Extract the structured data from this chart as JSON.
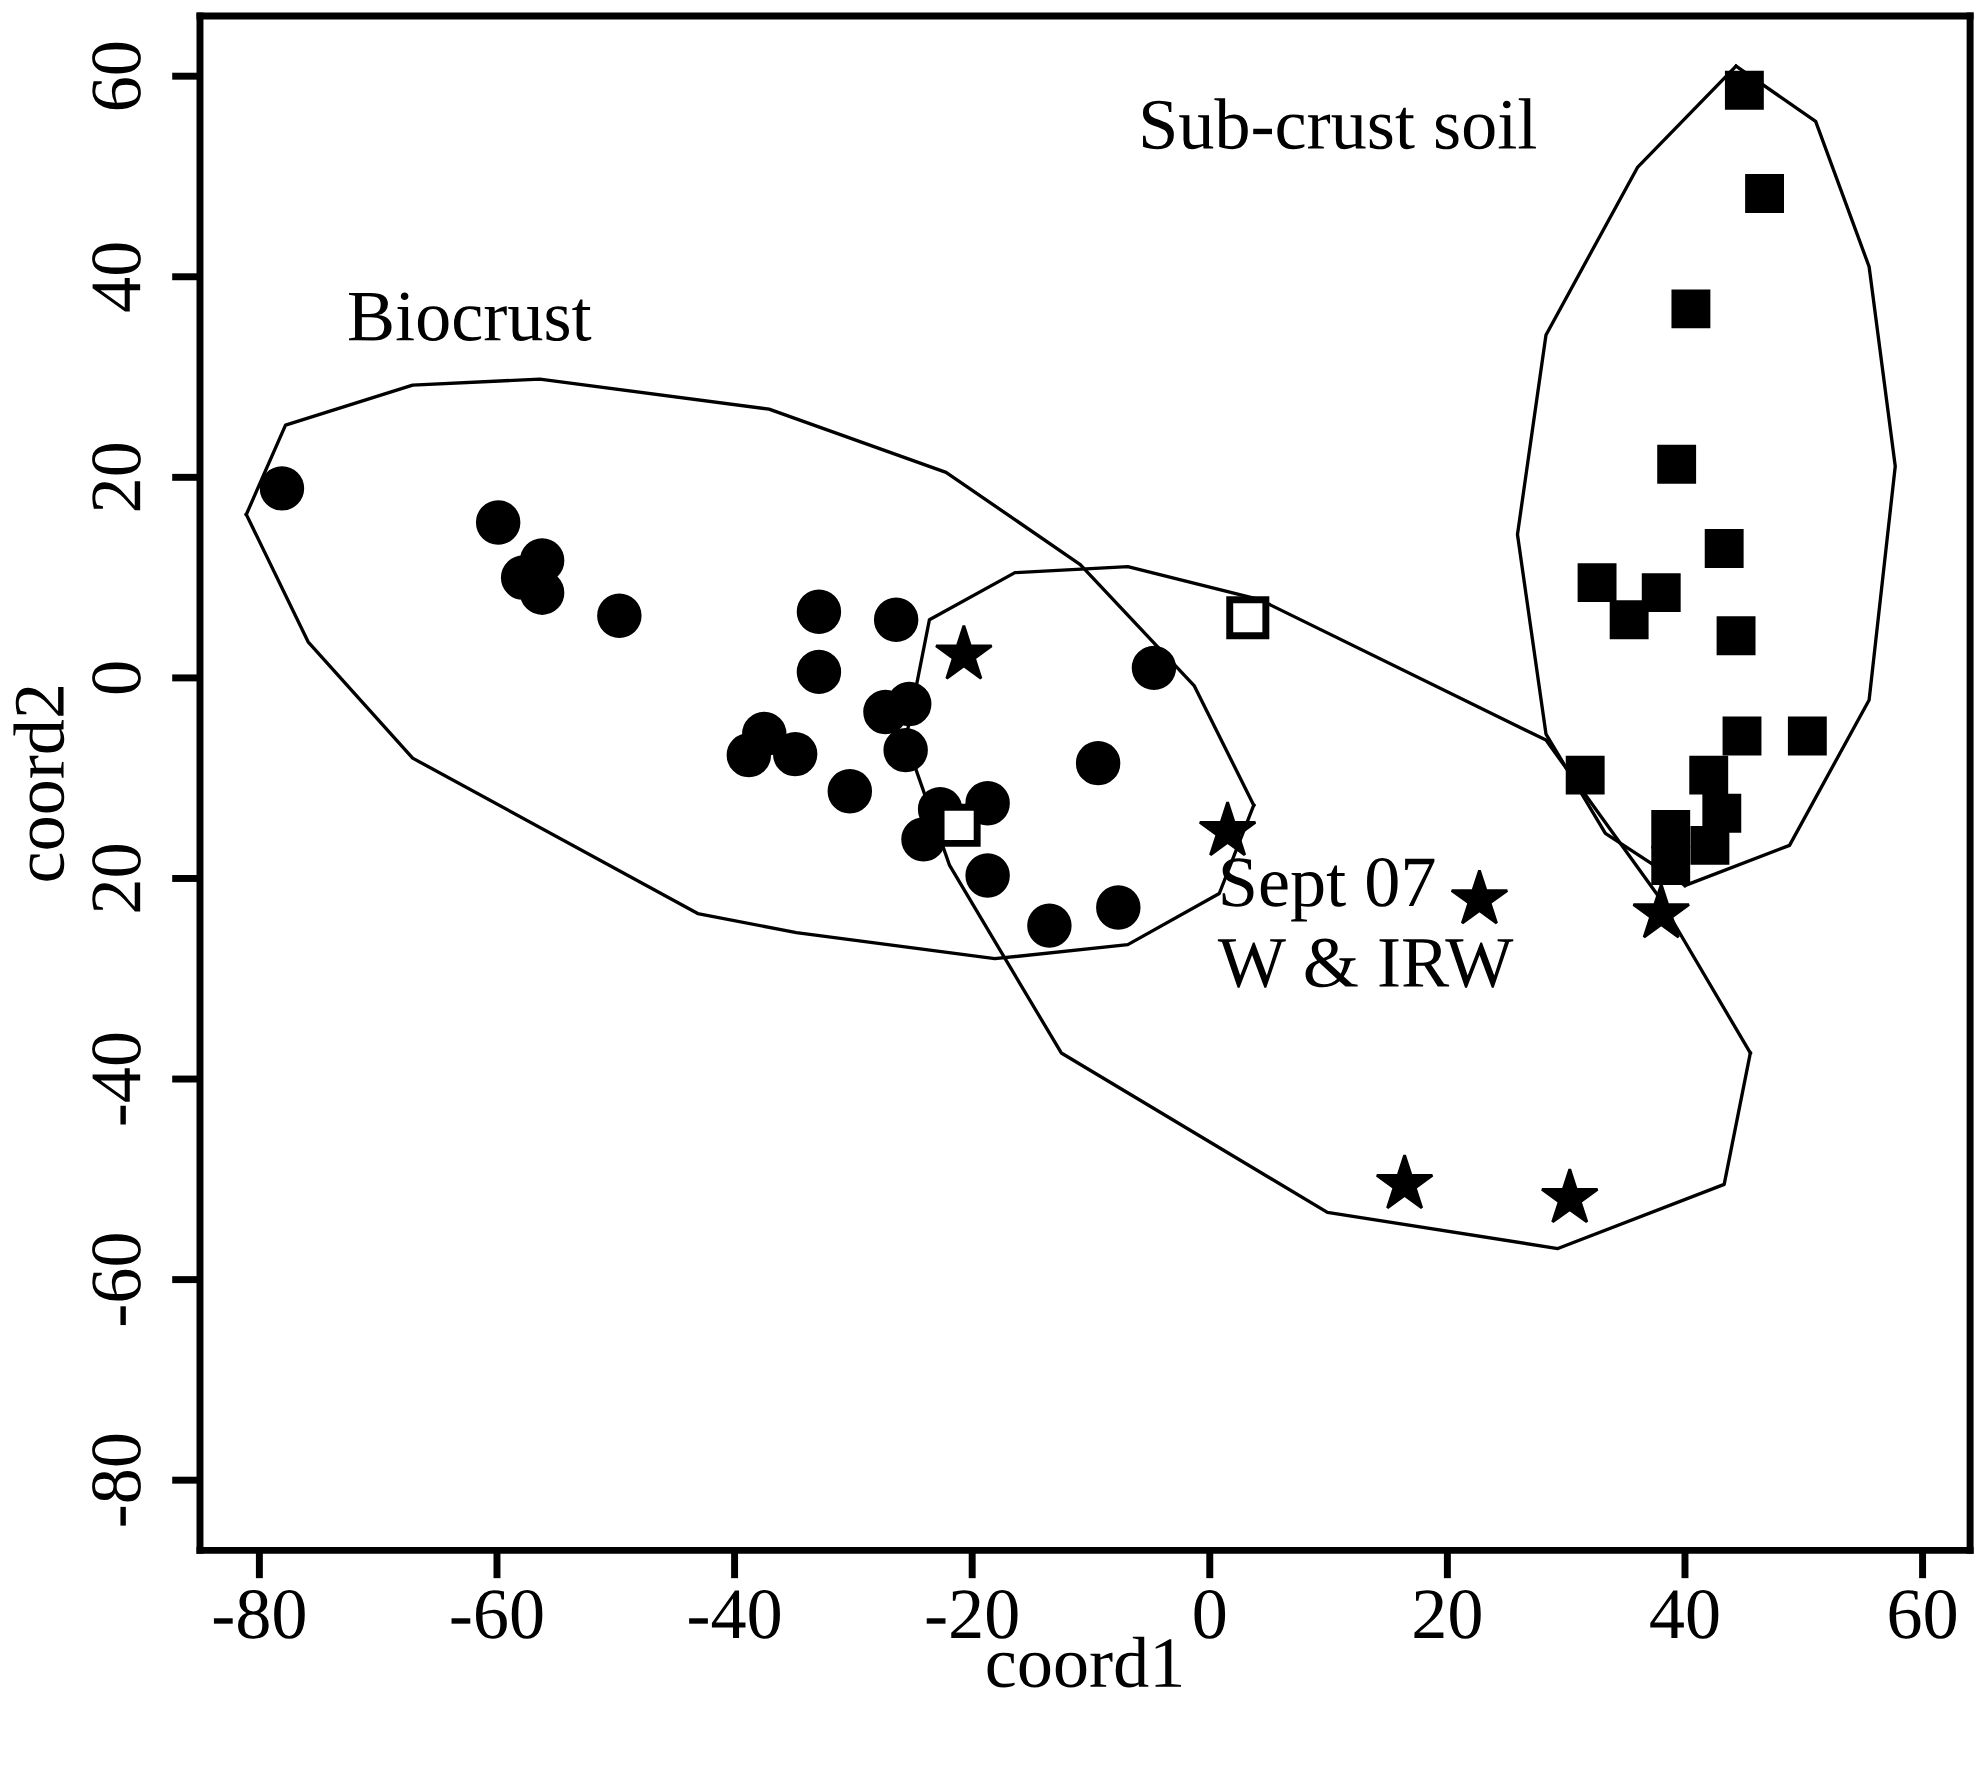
{
  "chart_data": {
    "type": "scatter",
    "xlabel": "coord1",
    "ylabel": "coord2",
    "xlim": [
      -85,
      64
    ],
    "ylim": [
      -87,
      66
    ],
    "xticks": [
      -80,
      -60,
      -40,
      -20,
      0,
      20,
      40,
      60
    ],
    "yticks": [
      -80,
      -60,
      -40,
      {
        "value": -20,
        "label": "20"
      },
      0,
      20,
      40,
      60
    ],
    "grid": false,
    "legend": false,
    "series": [
      {
        "marker": "circle",
        "color": "#000000",
        "x": [
          -78.1,
          -59.9,
          -56.2,
          -57.8,
          -56.2,
          -49.7,
          -32.9,
          -26.4,
          -32.9,
          -25.3,
          -27.3,
          -25.6,
          -37.5,
          -38.8,
          -34.9,
          -30.3,
          -4.7,
          -9.4,
          -22.7,
          -18.7,
          -24.1,
          -18.7,
          -13.5,
          -7.7
        ],
        "values": [
          18.9,
          15.5,
          11.7,
          10.0,
          8.5,
          6.2,
          6.6,
          5.8,
          0.6,
          -2.6,
          -3.4,
          -7.2,
          -5.6,
          -7.7,
          -7.6,
          -11.3,
          1.0,
          -8.5,
          -13.1,
          -12.5,
          -16.1,
          -19.7,
          -24.7,
          -22.9
        ]
      },
      {
        "marker": "star",
        "color": "#000000",
        "x": [
          -20.7,
          1.5,
          22.7,
          38.0,
          16.4,
          30.3
        ],
        "values": [
          2.3,
          -15.3,
          -22.1,
          -23.5,
          -50.5,
          -51.9
        ]
      },
      {
        "marker": "square",
        "color": "#000000",
        "x": [
          3.2,
          -21.1
        ],
        "values": [
          6.0,
          -14.7
        ]
      },
      {
        "marker": "square",
        "color": "#000000",
        "x": [
          45.0,
          46.7,
          40.5,
          39.3,
          43.3,
          32.6,
          38.0,
          35.3,
          44.3,
          44.8,
          50.3,
          31.6,
          42.0,
          43.1,
          38.8,
          42.1,
          38.8
        ],
        "values": [
          58.6,
          48.3,
          36.8,
          21.3,
          12.9,
          9.5,
          8.5,
          5.8,
          4.2,
          -5.8,
          -5.8,
          -9.7,
          -9.7,
          -13.5,
          -15.1,
          -16.7,
          -18.7
        ]
      },
      {
        "type": "line",
        "color": "#000000",
        "x": [
          -81.1,
          -77.8,
          -67.1,
          -56.4,
          -37.1,
          -22.2,
          -10.9,
          -1.3,
          3.7
        ],
        "values": [
          16.3,
          25.2,
          29.2,
          29.8,
          26.8,
          20.5,
          11.3,
          -0.8,
          -12.7
        ]
      },
      {
        "type": "line",
        "color": "#000000",
        "x": [
          -81.1,
          -75.9,
          -67.1,
          -43.1,
          -34.8,
          -18.1,
          -6.9,
          0.8,
          3.7
        ],
        "values": [
          16.3,
          3.6,
          -8.0,
          -23.5,
          -25.4,
          -28.0,
          -26.6,
          -21.5,
          -12.7
        ]
      },
      {
        "type": "line",
        "color": "#000000",
        "x": [
          -25.6,
          -23.6,
          -16.4,
          -6.9,
          4.2,
          28.3,
          37.6,
          45.5
        ],
        "values": [
          -6.2,
          5.8,
          10.5,
          11.1,
          7.8,
          -6.2,
          -21.5,
          -37.4
        ]
      },
      {
        "type": "line",
        "color": "#000000",
        "x": [
          -25.6,
          -21.9,
          -12.5,
          9.9,
          29.3,
          43.3,
          45.5
        ],
        "values": [
          -6.2,
          -18.7,
          -37.4,
          -53.3,
          -56.9,
          -50.5,
          -37.4
        ]
      },
      {
        "type": "line",
        "color": "#000000",
        "x": [
          44.3,
          36.0,
          28.3,
          25.9,
          28.3,
          33.3,
          40.0
        ],
        "values": [
          61.0,
          50.9,
          34.2,
          14.3,
          -5.6,
          -15.5,
          -20.7
        ]
      },
      {
        "type": "line",
        "color": "#000000",
        "x": [
          44.3,
          51.0,
          55.5,
          57.7,
          55.5,
          48.8,
          40.0
        ],
        "values": [
          61.0,
          55.5,
          41.0,
          21.1,
          -2.2,
          -16.7,
          -20.7
        ]
      }
    ],
    "annotations": [
      "Biocrust",
      "Sub-crust soil",
      "Sept 07\nW & IRW"
    ]
  }
}
